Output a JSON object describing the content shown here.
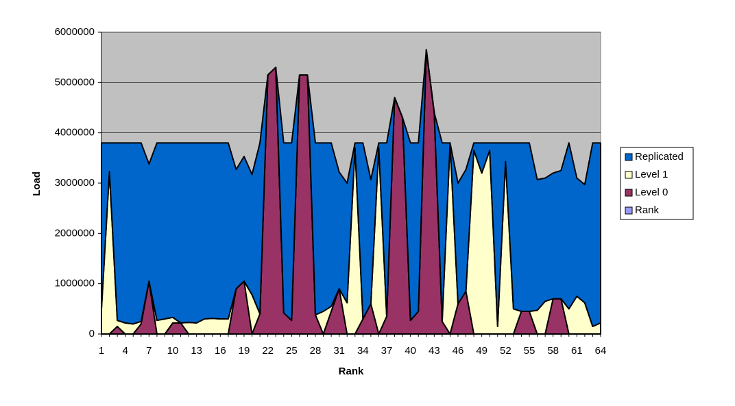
{
  "chart_data": {
    "type": "stacked-area",
    "x_label": "Rank",
    "y_label": "Load",
    "categories": [
      1,
      null,
      null,
      4,
      null,
      null,
      7,
      null,
      null,
      10,
      null,
      null,
      13,
      null,
      null,
      16,
      null,
      null,
      19,
      null,
      null,
      22,
      null,
      null,
      25,
      null,
      null,
      28,
      null,
      null,
      31,
      null,
      null,
      34,
      null,
      null,
      37,
      null,
      null,
      40,
      null,
      null,
      43,
      null,
      null,
      46,
      null,
      null,
      49,
      null,
      null,
      52,
      null,
      null,
      55,
      null,
      null,
      58,
      null,
      null,
      61,
      null,
      null,
      64
    ],
    "ylim": [
      0,
      6000000
    ],
    "yticks": [
      0,
      1000000,
      2000000,
      3000000,
      4000000,
      5000000,
      6000000
    ],
    "grid": true,
    "plot_background": "#c0c0c0",
    "legend": "right",
    "series": [
      {
        "name": "Replicated",
        "color": "#0066cc",
        "values": [
          3300000,
          570000,
          3530000,
          3580000,
          3600000,
          3550000,
          2330000,
          3530000,
          3500000,
          3470000,
          3580000,
          3570000,
          3580000,
          3500000,
          3490000,
          3500000,
          3500000,
          2370000,
          2480000,
          2390000,
          3400000,
          0,
          0,
          3380000,
          3530000,
          0,
          0,
          3420000,
          3350000,
          3250000,
          2320000,
          2380000,
          100000,
          3500000,
          2470000,
          100000,
          3450000,
          0,
          0,
          3530000,
          3350000,
          0,
          0,
          3550000,
          0,
          2400000,
          2420000,
          150000,
          600000,
          150000,
          3650000,
          370000,
          3300000,
          3350000,
          3350000,
          2600000,
          2450000,
          2500000,
          2550000,
          3300000,
          2350000,
          2350000,
          3650000,
          3580000
        ]
      },
      {
        "name": "Level 1",
        "color": "#ffffcc",
        "values": [
          500000,
          3230000,
          120000,
          220000,
          200000,
          50000,
          0,
          270000,
          300000,
          110000,
          0,
          230000,
          220000,
          300000,
          310000,
          300000,
          300000,
          0,
          0,
          780000,
          0,
          0,
          0,
          0,
          0,
          0,
          0,
          0,
          450000,
          100000,
          0,
          620000,
          3700000,
          0,
          0,
          3700000,
          0,
          0,
          0,
          0,
          0,
          0,
          0,
          0,
          3800000,
          0,
          0,
          3650000,
          3200000,
          3650000,
          150000,
          3430000,
          500000,
          0,
          0,
          470000,
          650000,
          0,
          0,
          500000,
          750000,
          620000,
          150000,
          220000
        ]
      },
      {
        "name": "Level 0",
        "color": "#993366",
        "values": [
          0,
          0,
          150000,
          0,
          0,
          200000,
          1050000,
          0,
          0,
          220000,
          220000,
          0,
          0,
          0,
          0,
          0,
          0,
          900000,
          1050000,
          0,
          400000,
          5150000,
          5300000,
          420000,
          270000,
          5150000,
          5150000,
          380000,
          0,
          450000,
          900000,
          0,
          0,
          300000,
          600000,
          0,
          350000,
          4700000,
          4300000,
          270000,
          450000,
          5650000,
          4400000,
          250000,
          0,
          600000,
          850000,
          0,
          0,
          0,
          0,
          0,
          0,
          450000,
          450000,
          0,
          0,
          700000,
          700000,
          0,
          0,
          0,
          0,
          0
        ]
      },
      {
        "name": "Rank",
        "color": "#9999ff",
        "values": [
          1,
          2,
          3,
          4,
          5,
          6,
          7,
          8,
          9,
          10,
          11,
          12,
          13,
          14,
          15,
          16,
          17,
          18,
          19,
          20,
          21,
          22,
          23,
          24,
          25,
          26,
          27,
          28,
          29,
          30,
          31,
          32,
          33,
          34,
          35,
          36,
          37,
          38,
          39,
          40,
          41,
          42,
          43,
          44,
          45,
          46,
          47,
          48,
          49,
          50,
          51,
          52,
          53,
          54,
          55,
          56,
          57,
          58,
          59,
          60,
          61,
          62,
          63,
          64
        ]
      }
    ]
  }
}
